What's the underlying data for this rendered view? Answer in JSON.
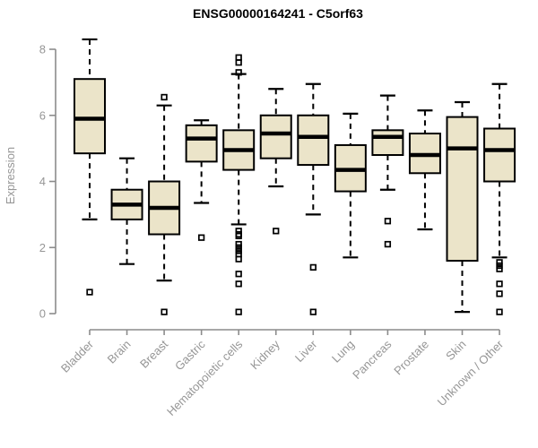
{
  "title": "ENSG00000164241 - C5orf63",
  "colors": {
    "background": "#ffffff",
    "box_fill": "#EBE4C9",
    "box_stroke": "#000000",
    "median_color": "#000000",
    "whisker_color": "#000000",
    "outlier_color": "#000000",
    "axis_color": "#8C8C8C",
    "tick_label_color": "#969696",
    "title_color": "#000000"
  },
  "chart_data": {
    "type": "boxplot",
    "title": "ENSG00000164241 - C5orf63",
    "xlabel": "",
    "ylabel": "Expression",
    "ylim": [
      0,
      8
    ],
    "yticks": [
      0,
      2,
      4,
      6,
      8
    ],
    "grid": false,
    "legend": false,
    "categories": [
      "Bladder",
      "Brain",
      "Breast",
      "Gastric",
      "Hematopoietic cells",
      "Kidney",
      "Liver",
      "Lung",
      "Pancreas",
      "Prostate",
      "Skin",
      "Unknown / Other"
    ],
    "series": [
      {
        "name": "Bladder",
        "whisker_low": 2.85,
        "q1": 4.85,
        "median": 5.9,
        "q3": 7.1,
        "whisker_high": 8.3,
        "outliers": [
          0.65
        ]
      },
      {
        "name": "Brain",
        "whisker_low": 1.5,
        "q1": 2.85,
        "median": 3.3,
        "q3": 3.75,
        "whisker_high": 4.7,
        "outliers": []
      },
      {
        "name": "Breast",
        "whisker_low": 1.0,
        "q1": 2.4,
        "median": 3.2,
        "q3": 4.0,
        "whisker_high": 6.3,
        "outliers": [
          6.55,
          0.05
        ]
      },
      {
        "name": "Gastric",
        "whisker_low": 3.35,
        "q1": 4.6,
        "median": 5.3,
        "q3": 5.7,
        "whisker_high": 5.85,
        "outliers": [
          2.3
        ]
      },
      {
        "name": "Hematopoietic cells",
        "whisker_low": 2.7,
        "q1": 4.35,
        "median": 4.95,
        "q3": 5.55,
        "whisker_high": 7.25,
        "outliers": [
          7.75,
          7.6,
          7.3,
          2.5,
          2.4,
          2.35,
          2.1,
          2.0,
          1.9,
          1.8,
          1.65,
          1.2,
          0.9,
          0.05
        ]
      },
      {
        "name": "Kidney",
        "whisker_low": 3.85,
        "q1": 4.7,
        "median": 5.45,
        "q3": 6.0,
        "whisker_high": 6.8,
        "outliers": [
          2.5
        ]
      },
      {
        "name": "Liver",
        "whisker_low": 3.0,
        "q1": 4.5,
        "median": 5.35,
        "q3": 6.0,
        "whisker_high": 6.95,
        "outliers": [
          1.4,
          0.05
        ]
      },
      {
        "name": "Lung",
        "whisker_low": 1.7,
        "q1": 3.7,
        "median": 4.35,
        "q3": 5.1,
        "whisker_high": 6.05,
        "outliers": []
      },
      {
        "name": "Pancreas",
        "whisker_low": 3.75,
        "q1": 4.8,
        "median": 5.35,
        "q3": 5.55,
        "whisker_high": 6.6,
        "outliers": [
          2.8,
          2.1
        ]
      },
      {
        "name": "Prostate",
        "whisker_low": 2.55,
        "q1": 4.25,
        "median": 4.8,
        "q3": 5.45,
        "whisker_high": 6.15,
        "outliers": []
      },
      {
        "name": "Skin",
        "whisker_low": 0.05,
        "q1": 1.6,
        "median": 5.0,
        "q3": 5.95,
        "whisker_high": 6.4,
        "outliers": []
      },
      {
        "name": "Unknown / Other",
        "whisker_low": 1.7,
        "q1": 4.0,
        "median": 4.95,
        "q3": 5.6,
        "whisker_high": 6.95,
        "outliers": [
          1.55,
          1.45,
          1.35,
          0.9,
          0.6,
          0.05
        ]
      }
    ]
  }
}
